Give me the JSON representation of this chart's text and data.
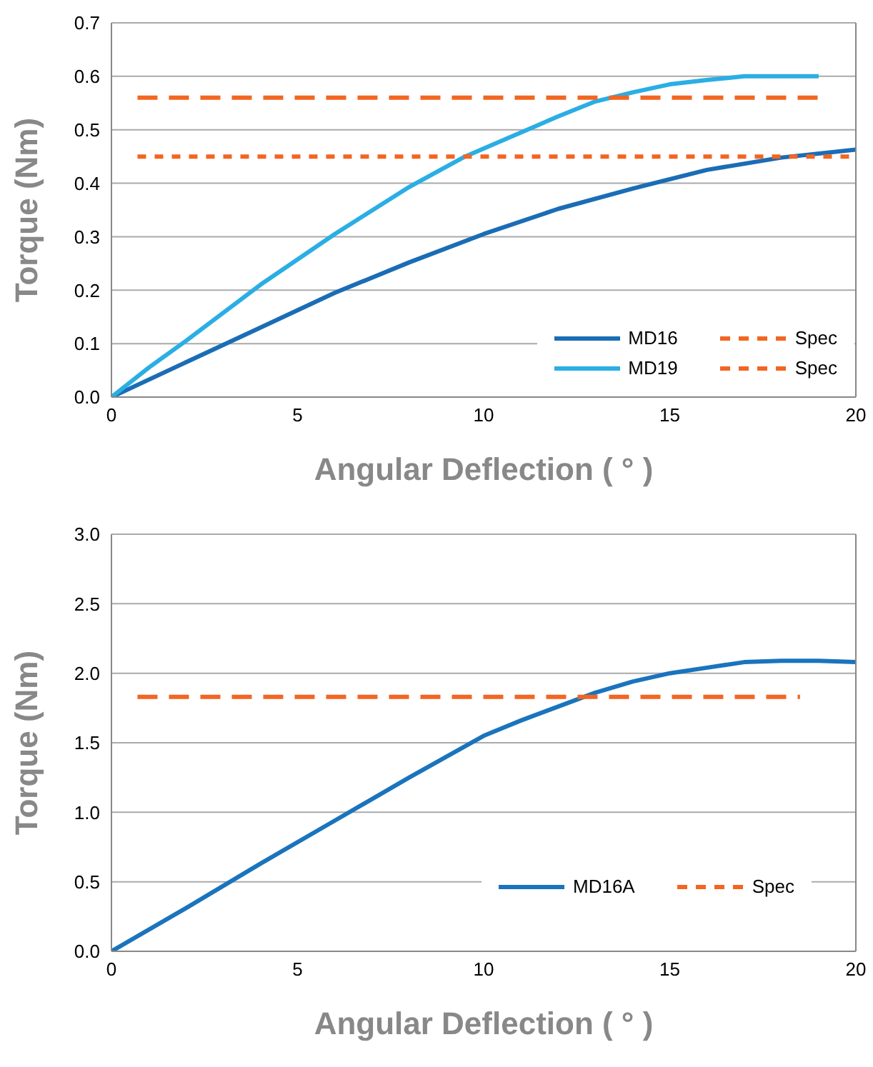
{
  "chart_data": [
    {
      "type": "line",
      "xlabel": "Angular Deflection ( ° )",
      "ylabel": "Torque (Nm)",
      "xlim": [
        0,
        20
      ],
      "xticks": [
        0,
        5,
        10,
        15,
        20
      ],
      "ylim": [
        0,
        0.7
      ],
      "yticks": [
        {
          "value": 0,
          "label": "0.0"
        },
        0.1,
        0.2,
        0.3,
        0.4,
        0.5,
        0.6,
        0.7
      ],
      "grid": "y",
      "legend": "bottom right",
      "marker": "none",
      "series": [
        {
          "name": "MD16",
          "color": "#1a6db5",
          "line_style": "solid",
          "x": [
            0,
            2,
            4,
            6,
            8,
            10,
            12,
            14,
            16,
            18,
            20
          ],
          "values": [
            0,
            0.065,
            0.13,
            0.195,
            0.252,
            0.305,
            0.352,
            0.39,
            0.425,
            0.448,
            0.463
          ]
        },
        {
          "name": "MD19",
          "color": "#2aaee4",
          "line_style": "solid",
          "x": [
            0,
            1,
            2,
            4,
            6,
            8,
            9.5,
            10,
            12,
            13,
            14,
            15,
            16,
            17,
            18,
            19
          ],
          "values": [
            0,
            0.055,
            0.105,
            0.21,
            0.305,
            0.393,
            0.45,
            0.465,
            0.525,
            0.553,
            0.57,
            0.585,
            0.593,
            0.6,
            0.6,
            0.6
          ]
        },
        {
          "name": "Spec",
          "color": "#f26522",
          "line_style": "dashed",
          "x": [
            0.7,
            19
          ],
          "values": [
            0.56,
            0.56
          ]
        },
        {
          "name": "Spec",
          "color": "#f26522",
          "line_style": "dotted",
          "x": [
            0.7,
            20
          ],
          "values": [
            0.45,
            0.45
          ]
        }
      ]
    },
    {
      "type": "line",
      "xlabel": "Angular Deflection ( ° )",
      "ylabel": "Torque (Nm)",
      "xlim": [
        0,
        20
      ],
      "xticks": [
        0,
        5,
        10,
        15,
        20
      ],
      "ylim": [
        0,
        3
      ],
      "yticks": [
        {
          "value": 0,
          "label": "0.0"
        },
        0.5,
        {
          "value": 1,
          "label": "1.0"
        },
        1.5,
        {
          "value": 2,
          "label": "2.0"
        },
        2.5,
        {
          "value": 3,
          "label": "3.0"
        }
      ],
      "grid": "y",
      "legend": "right",
      "marker": "none",
      "series": [
        {
          "name": "MD16A",
          "color": "#1a74bd",
          "line_style": "solid",
          "x": [
            0,
            2,
            4,
            6,
            8,
            10,
            11,
            12,
            13,
            14,
            15,
            16,
            17,
            18,
            19,
            20
          ],
          "values": [
            0,
            0.31,
            0.63,
            0.94,
            1.25,
            1.55,
            1.66,
            1.76,
            1.86,
            1.94,
            2.0,
            2.04,
            2.08,
            2.09,
            2.09,
            2.08
          ]
        },
        {
          "name": "Spec",
          "color": "#f26522",
          "line_style": "dashed",
          "x": [
            0.7,
            18.5
          ],
          "values": [
            1.83,
            1.83
          ]
        }
      ]
    }
  ]
}
